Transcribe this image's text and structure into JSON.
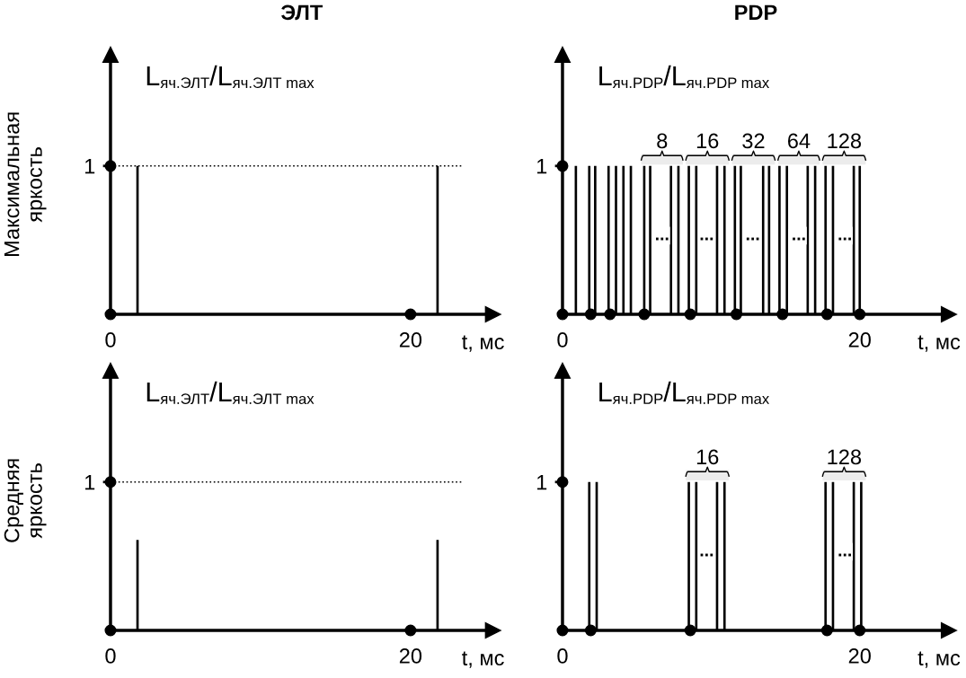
{
  "chart_data": [
    {
      "type": "bar",
      "title": "ЭЛТ",
      "ylabel": "Максимальная\nяркость",
      "xlabel": "t, мс",
      "series": [
        {
          "color": "#000000",
          "x": [
            1.8,
            21.8
          ],
          "values": [
            1,
            1
          ]
        },
        {
          "type": "scatter",
          "color": "#000000",
          "x": [
            0,
            0,
            20
          ],
          "values": [
            0,
            1,
            0
          ]
        }
      ],
      "xlim": [
        0,
        25.5
      ],
      "ylim": [
        0,
        1.75
      ],
      "xticks": [
        0,
        20
      ],
      "yticks": [
        1
      ],
      "ref_lines": [
        {
          "axis": "y",
          "value": 1,
          "line_style": "dotted",
          "color": "#000000"
        }
      ],
      "annotations": [
        "L$_{яч.ЭЛТ}$/L$_{яч.ЭЛТ max}$"
      ],
      "marker": "circle",
      "grid": false,
      "legend": false
    },
    {
      "type": "bar",
      "title": "PDP",
      "xlabel": "t, мс",
      "series": [
        {
          "color": "#000000",
          "x": [
            0.9,
            1.8,
            2.2,
            3.1,
            3.6,
            4.1,
            4.6,
            5.5,
            5.9,
            7.3,
            7.8,
            8.5,
            9.0,
            10.4,
            10.9,
            11.6,
            12.0,
            13.5,
            13.9,
            14.6,
            15.1,
            16.5,
            17.0,
            17.7,
            18.2,
            19.6,
            20.0
          ],
          "values": [
            1,
            1,
            1,
            1,
            1,
            1,
            1,
            1,
            1,
            1,
            1,
            1,
            1,
            1,
            1,
            1,
            1,
            1,
            1,
            1,
            1,
            1,
            1,
            1,
            1,
            1,
            1
          ]
        },
        {
          "type": "scatter",
          "color": "#000000",
          "x": [
            0,
            0,
            1.9,
            3.2,
            5.5,
            8.6,
            11.7,
            14.8,
            17.8,
            20.0
          ],
          "values": [
            0,
            1,
            0,
            0,
            0,
            0,
            0,
            0,
            0,
            0
          ]
        }
      ],
      "xlim": [
        0,
        26
      ],
      "ylim": [
        0,
        1.75
      ],
      "xticks": [
        0,
        20
      ],
      "yticks": [
        1
      ],
      "bands": [
        {
          "axis": "x",
          "from": 5.3,
          "to": 8.1,
          "label": "8",
          "color": "#ececec"
        },
        {
          "axis": "x",
          "from": 8.3,
          "to": 11.2,
          "label": "16",
          "color": "#ececec"
        },
        {
          "axis": "x",
          "from": 11.4,
          "to": 14.3,
          "label": "32",
          "color": "#ececec"
        },
        {
          "axis": "x",
          "from": 14.5,
          "to": 17.3,
          "label": "64",
          "color": "#ececec"
        },
        {
          "axis": "x",
          "from": 17.5,
          "to": 20.4,
          "label": "128",
          "color": "#ececec"
        }
      ],
      "annotations": [
        "L$_{яч.PDP}$/L$_{яч.PDP max}$",
        {
          "text": "...",
          "x": 6.7,
          "y": 0.53
        },
        {
          "text": "...",
          "x": 9.7,
          "y": 0.53
        },
        {
          "text": "...",
          "x": 12.8,
          "y": 0.53
        },
        {
          "text": "...",
          "x": 15.9,
          "y": 0.53
        },
        {
          "text": "...",
          "x": 19.0,
          "y": 0.53
        }
      ],
      "marker": "circle",
      "grid": false,
      "legend": false
    },
    {
      "type": "bar",
      "ylabel": "Средняя\nяркость",
      "xlabel": "t, мс",
      "series": [
        {
          "color": "#000000",
          "x": [
            1.8,
            21.8
          ],
          "values": [
            0.61,
            0.61
          ]
        },
        {
          "type": "scatter",
          "color": "#000000",
          "x": [
            0,
            0,
            20
          ],
          "values": [
            0,
            1,
            0
          ]
        }
      ],
      "xlim": [
        0,
        25.5
      ],
      "ylim": [
        0,
        1.75
      ],
      "xticks": [
        0,
        20
      ],
      "yticks": [
        1
      ],
      "ref_lines": [
        {
          "axis": "y",
          "value": 1,
          "line_style": "dotted",
          "color": "#000000"
        }
      ],
      "annotations": [
        "L$_{яч.ЭЛТ}$/L$_{яч.ЭЛТ max}$"
      ],
      "marker": "circle",
      "grid": false,
      "legend": false
    },
    {
      "type": "bar",
      "xlabel": "t, мс",
      "series": [
        {
          "color": "#000000",
          "x": [
            1.8,
            2.3,
            8.5,
            9.0,
            10.4,
            10.9,
            17.7,
            18.2,
            19.6,
            20.1
          ],
          "values": [
            1,
            1,
            1,
            1,
            1,
            1,
            1,
            1,
            1,
            1
          ]
        },
        {
          "type": "scatter",
          "color": "#000000",
          "x": [
            0,
            0,
            1.9,
            8.6,
            17.8,
            20.0
          ],
          "values": [
            0,
            1,
            0,
            0,
            0,
            0
          ]
        }
      ],
      "xlim": [
        0,
        26
      ],
      "ylim": [
        0,
        1.75
      ],
      "xticks": [
        0,
        20
      ],
      "yticks": [
        1
      ],
      "bands": [
        {
          "axis": "x",
          "from": 8.3,
          "to": 11.2,
          "label": "16",
          "color": "#ececec"
        },
        {
          "axis": "x",
          "from": 17.5,
          "to": 20.4,
          "label": "128",
          "color": "#ececec"
        }
      ],
      "annotations": [
        "L$_{яч.PDP}$/L$_{яч.PDP max}$",
        {
          "text": "...",
          "x": 9.7,
          "y": 0.53
        },
        {
          "text": "...",
          "x": 19.0,
          "y": 0.53
        }
      ],
      "marker": "circle",
      "grid": false,
      "legend": false
    }
  ]
}
